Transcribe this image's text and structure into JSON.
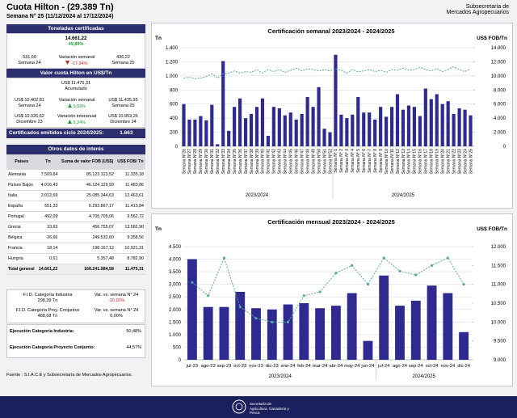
{
  "header": {
    "title": "Cuota Hilton - (29.389 Tn)",
    "subtitle": "Semana N° 25 (11/12/2024 al 17/12/2024)",
    "org_line1": "Subsecretaría de",
    "org_line2": "Mercados Agropecuarios"
  },
  "toneladas": {
    "title": "Toneladas certificadas",
    "total": "14.661,22",
    "total_pct": "49,89%",
    "prev_value": "531,60",
    "prev_label": "Semana 24",
    "var_label": "Variación semanal",
    "var_value": "-17,94%",
    "cur_value": "436,22",
    "cur_label": "Semana 25"
  },
  "valor": {
    "title": "Valor cuota Hilton en US$/Tn",
    "acum_value": "US$ 11.475,31",
    "acum_label": "Acumulado",
    "row1": {
      "left_value": "US$ 10.402,81",
      "left_label": "Semana 24",
      "var_label": "Variación semanal",
      "var_value": "9,93%",
      "right_value": "US$ 11.435,95",
      "right_label": "Semana 25"
    },
    "row2": {
      "left_value": "US$ 10.026,62",
      "left_label": "Diciembre 23",
      "var_label": "Variación interanual",
      "var_value": "9,24%",
      "right_value": "US$ 10.953,26",
      "right_label": "Diciembre 24"
    }
  },
  "certificados": {
    "label": "Certificados emitidos  ciclo 2024/2025:",
    "value": "1.663"
  },
  "table": {
    "title": "Otros datos de interés",
    "columns": [
      "Países",
      "Tn",
      "Suma de valor FOB (US$)",
      "US$ FOB/ Tn"
    ],
    "rows": [
      [
        "Alemania",
        "7.509,64",
        "85.123.123,52",
        "11.335,18"
      ],
      [
        "Países Bajos",
        "4.016,43",
        "46.124.129,93",
        "11.483,86"
      ],
      [
        "Italia",
        "2.012,69",
        "25.085.344,63",
        "12.463,61"
      ],
      [
        "España",
        "551,33",
        "6.293.867,17",
        "11.415,84"
      ],
      [
        "Portugal",
        "492,09",
        "4.705.705,06",
        "9.562,72"
      ],
      [
        "Grecia",
        "33,63",
        "456.755,07",
        "13.582,90"
      ],
      [
        "Bélgica",
        "26,66",
        "249.532,60",
        "9.358,56"
      ],
      [
        "Francia",
        "18,14",
        "198.167,12",
        "10.921,31"
      ],
      [
        "Hungría",
        "0,61",
        "5.357,48",
        "8.782,90"
      ]
    ],
    "total": [
      "Total general",
      "14.661,22",
      "168.241.984,58",
      "11.475,31"
    ]
  },
  "fid": [
    {
      "label": "F.I.D. Categoría Industria",
      "value": "298,39 Tn",
      "var_label": "Var. vs. semana N° 24",
      "var_value": "-10,10%"
    },
    {
      "label": "F.I.D. Categoría Proy. Conjuntos",
      "value": "488,68 Tn",
      "var_label": "Var. vs. semana N° 24",
      "var_value": "0,00%"
    }
  ],
  "ejecucion": [
    {
      "label": "Ejecución Categoría Industria:",
      "value": "50,48%"
    },
    {
      "label": "Ejecución Categoría Proyecto Conjunto:",
      "value": "44,57%"
    }
  ],
  "source": "Fuente : S.I.A.C.E y Subsecretaría de Mercados Agropecuarios.",
  "footer": {
    "logo_text": "Secretaría de Agricultura, Ganadería y Pesca"
  },
  "chart_data": [
    {
      "type": "combo",
      "title": "Certificación semanal 2023/2024 - 2024/2025",
      "y_label": "Tn",
      "y2_label": "US$ FOB/Tn",
      "groups": [
        {
          "name": "2023/2024",
          "categories": [
            "Semana N°26",
            "Semana N°27",
            "Semana N°28",
            "Semana N°29",
            "Semana N°30",
            "Semana N°31",
            "Semana N°32",
            "Semana N°33",
            "Semana N°34",
            "Semana N°35",
            "Semana N°36",
            "Semana N°37",
            "Semana N°38",
            "Semana N°39",
            "Semana N°40",
            "Semana N°41",
            "Semana N°42",
            "Semana N°43",
            "Semana N°44",
            "Semana N°45",
            "Semana N°46",
            "Semana N°47",
            "Semana N°48",
            "Semana N°49",
            "Semana N°50",
            "Semana N°51",
            "Semana N°52"
          ]
        },
        {
          "name": "2024/2025",
          "categories": [
            "Semana N° 1",
            "Semana N° 2",
            "Semana N° 3",
            "Semana N° 4",
            "Semana N° 5",
            "Semana N° 6",
            "Semana N° 7",
            "Semana N° 8",
            "Semana N° 9",
            "Semana N°10",
            "Semana N°11",
            "Semana N°12",
            "Semana N°13",
            "Semana N°14",
            "Semana N°15",
            "Semana N°16",
            "Semana N°17",
            "Semana N°18",
            "Semana N°19",
            "Semana N°20",
            "Semana N°21",
            "Semana N°22",
            "Semana N°23",
            "Semana N°24",
            "Semana N°25"
          ]
        }
      ],
      "series": [
        {
          "name": "Tn",
          "type": "bar",
          "color": "#2e2a8f",
          "values": [
            600,
            380,
            380,
            430,
            370,
            590,
            30,
            1210,
            220,
            560,
            680,
            400,
            460,
            560,
            680,
            150,
            560,
            540,
            440,
            480,
            380,
            460,
            700,
            560,
            840,
            250,
            200,
            1300,
            450,
            400,
            450,
            700,
            480,
            480,
            380,
            560,
            420,
            560,
            740,
            520,
            580,
            560,
            430,
            820,
            670,
            740,
            600,
            640,
            460,
            540,
            520,
            440
          ]
        },
        {
          "name": "US$ FOB/Tn",
          "type": "line",
          "axis": "y2",
          "color": "#5aa89f",
          "markers": false,
          "values": [
            9700,
            9800,
            9600,
            9700,
            9900,
            10300,
            9700,
            10300,
            10400,
            10700,
            10400,
            10600,
            10500,
            10900,
            10400,
            10900,
            10600,
            10900,
            10500,
            10800,
            11100,
            10700,
            11000,
            10900,
            10700,
            10900,
            10700,
            11000,
            10800,
            10400,
            10900,
            10600,
            10700,
            10900,
            10600,
            10800,
            10500,
            10900,
            10800,
            11100,
            10800,
            10900,
            11200,
            10900,
            10700,
            11000,
            10600,
            10900,
            11300,
            10900,
            10600,
            11000
          ]
        }
      ],
      "ylim": [
        0,
        1400
      ],
      "yticks": [
        0,
        200,
        400,
        600,
        800,
        {
          "value": 1000,
          "label": "1.000"
        },
        {
          "value": 1200,
          "label": "1.200"
        },
        {
          "value": 1400,
          "label": "1.400"
        }
      ],
      "y2lim": [
        0,
        14000
      ],
      "y2ticks": [
        0,
        {
          "value": 2000,
          "label": "2.000"
        },
        {
          "value": 4000,
          "label": "4.000"
        },
        {
          "value": 6000,
          "label": "6.000"
        },
        {
          "value": 8000,
          "label": "8.000"
        },
        {
          "value": 10000,
          "label": "10.000"
        },
        {
          "value": 12000,
          "label": "12.000"
        },
        {
          "value": 14000,
          "label": "14.000"
        }
      ],
      "grid": true,
      "rotate_labels": true
    },
    {
      "type": "combo",
      "title": "Certificación mensual 2023/2024 - 2024/2025",
      "y_label": "Tn",
      "y2_label": "US$ FOB/Tn",
      "groups": [
        {
          "name": "2023/2024",
          "categories": [
            "jul-23",
            "ago-23",
            "sep-23",
            "oct-23",
            "nov-23",
            "dic-23",
            "ene-24",
            "feb-24",
            "mar-24",
            "abr-24",
            "may-24",
            "jun-24"
          ]
        },
        {
          "name": "2024/2025",
          "categories": [
            "jul-24",
            "ago-24",
            "sep-24",
            "oct-24",
            "nov-24",
            "dic-24"
          ]
        }
      ],
      "series": [
        {
          "name": "Tn",
          "type": "bar",
          "color": "#2e2a8f",
          "values": [
            4000,
            2100,
            2100,
            2700,
            2050,
            2000,
            2200,
            2250,
            2050,
            2150,
            2650,
            750,
            3350,
            2150,
            2350,
            2950,
            2650,
            1100
          ]
        },
        {
          "name": "US$ FOB/Tn",
          "type": "line",
          "axis": "y2",
          "color": "#5aa89f",
          "markers": true,
          "values": [
            11050,
            10700,
            11700,
            10400,
            10100,
            10000,
            10000,
            10700,
            10800,
            11300,
            11500,
            11000,
            11700,
            11350,
            11250,
            11500,
            11700,
            11000
          ]
        }
      ],
      "ylim": [
        0,
        4500
      ],
      "yticks": [
        0,
        500,
        {
          "value": 1000,
          "label": "1.000"
        },
        {
          "value": 1500,
          "label": "1.500"
        },
        {
          "value": 2000,
          "label": "2.000"
        },
        {
          "value": 2500,
          "label": "2.500"
        },
        {
          "value": 3000,
          "label": "3.000"
        },
        {
          "value": 3500,
          "label": "3.500"
        },
        {
          "value": 4000,
          "label": "4.000"
        },
        {
          "value": 4500,
          "label": "4.500"
        }
      ],
      "y2lim": [
        9000,
        12000
      ],
      "y2ticks": [
        {
          "value": 9000,
          "label": "9.000"
        },
        {
          "value": 9500,
          "label": "9.500"
        },
        {
          "value": 10000,
          "label": "10.000"
        },
        {
          "value": 10500,
          "label": "10.500"
        },
        {
          "value": 11000,
          "label": "11.000"
        },
        {
          "value": 11500,
          "label": "11.500"
        },
        {
          "value": 12000,
          "label": "12.000"
        }
      ],
      "grid": true,
      "rotate_labels": false
    }
  ]
}
